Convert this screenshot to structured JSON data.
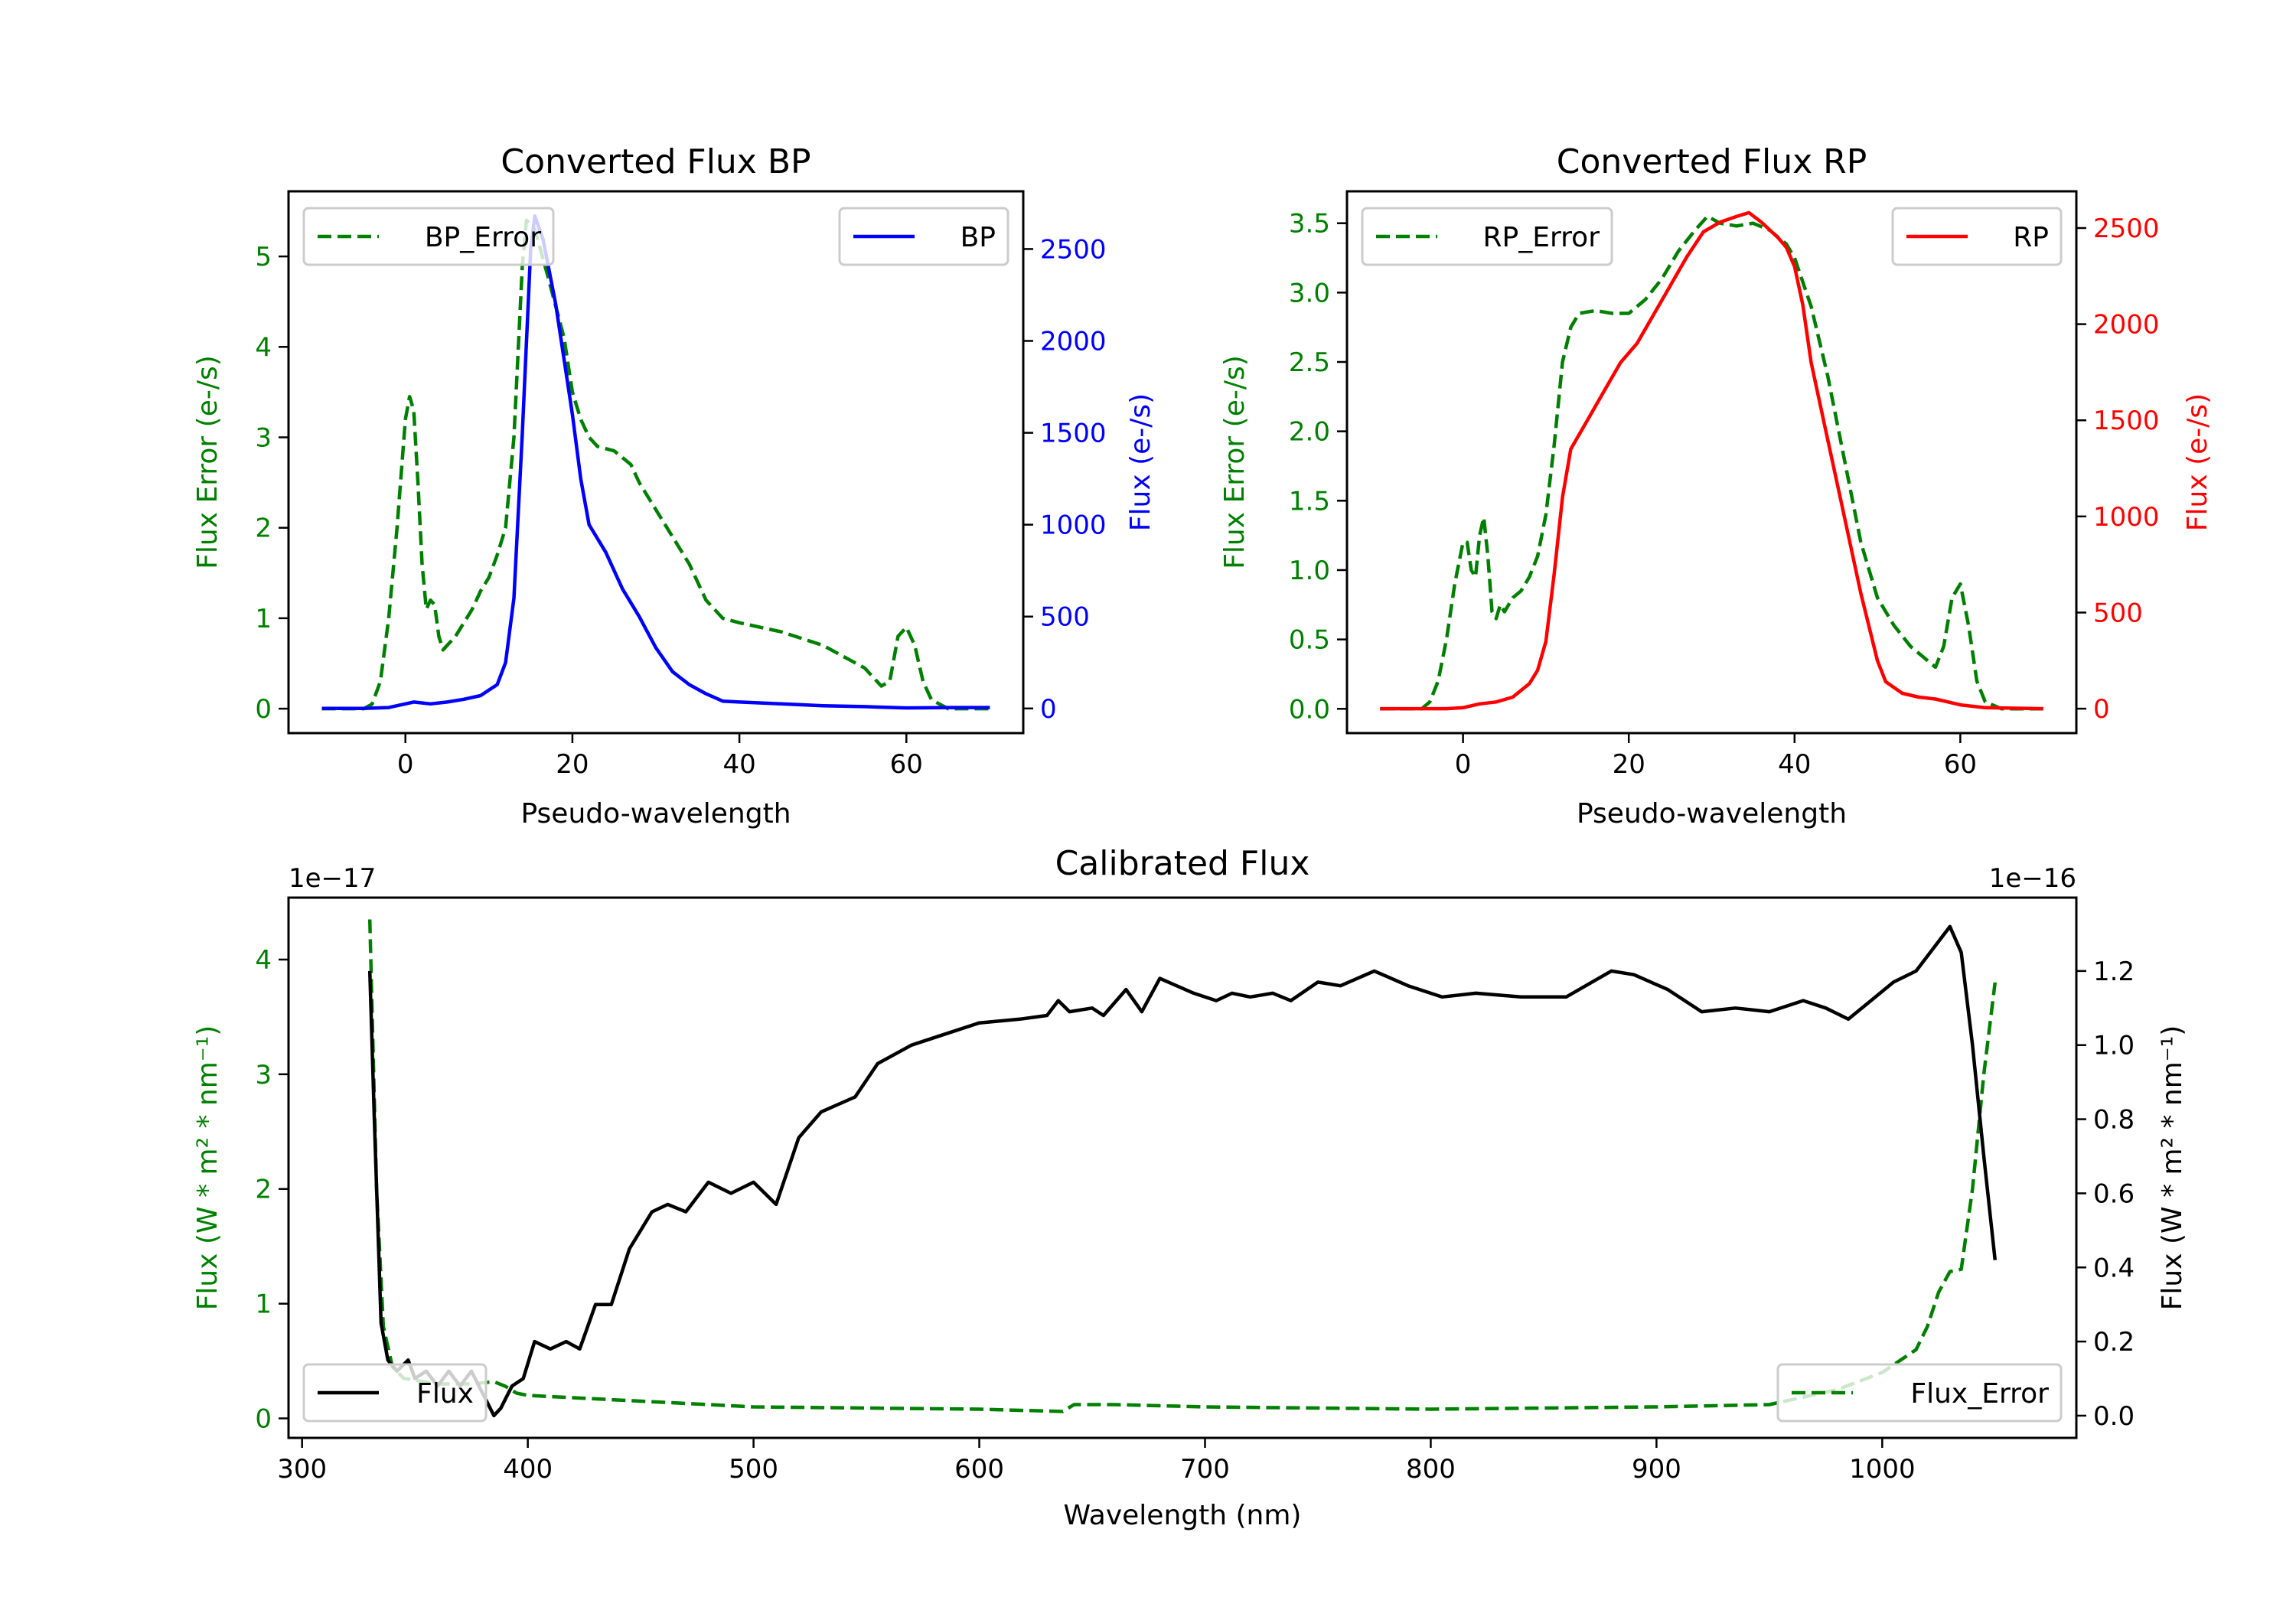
{
  "chart_data": [
    {
      "type": "line",
      "title": "Converted Flux BP",
      "xlabel": "Pseudo-wavelength",
      "ylabel_left": "Flux Error (e-/s)",
      "ylabel_right": "Flux (e-/s)",
      "xlim": [
        -14,
        74
      ],
      "ylim_left": [
        -0.27,
        5.72
      ],
      "ylim_right": [
        -134,
        2814
      ],
      "xticks": [
        0,
        20,
        40,
        60
      ],
      "yticks_left": [
        0,
        1,
        2,
        3,
        4,
        5
      ],
      "yticks_left_labels": [
        "0",
        "1",
        "2",
        "3",
        "4",
        "5"
      ],
      "yticks_right": [
        0,
        500,
        1000,
        1500,
        2000,
        2500
      ],
      "left_color": "#008000",
      "right_color": "#0000ff",
      "series": [
        {
          "name": "BP_Error",
          "axis": "left",
          "style": "dashed",
          "color": "#008000",
          "legend": "top-left",
          "x": [
            -10,
            -5,
            -4,
            -3,
            -2,
            -1,
            0,
            0.5,
            1,
            1.5,
            2,
            2.5,
            3,
            3.5,
            4,
            4.5,
            5,
            6,
            7,
            8,
            9,
            10,
            11,
            12,
            13,
            14,
            14.5,
            15.5,
            17,
            19,
            20,
            21,
            22,
            23,
            25,
            27,
            28,
            30,
            32,
            34,
            36,
            38,
            40,
            45,
            50,
            55,
            57,
            58,
            59,
            60,
            61,
            62,
            63,
            65,
            70
          ],
          "y": [
            0,
            0,
            0.05,
            0.3,
            1.0,
            2.0,
            3.2,
            3.45,
            3.3,
            2.5,
            1.6,
            1.1,
            1.2,
            1.15,
            0.8,
            0.65,
            0.7,
            0.8,
            0.95,
            1.1,
            1.3,
            1.45,
            1.7,
            2.0,
            3.0,
            4.9,
            5.4,
            5.3,
            4.8,
            4.1,
            3.5,
            3.2,
            3.0,
            2.9,
            2.85,
            2.7,
            2.5,
            2.2,
            1.9,
            1.6,
            1.2,
            1.0,
            0.95,
            0.85,
            0.7,
            0.45,
            0.25,
            0.3,
            0.8,
            0.9,
            0.7,
            0.3,
            0.1,
            0,
            0
          ]
        },
        {
          "name": "BP",
          "axis": "right",
          "style": "solid",
          "color": "#0000ff",
          "legend": "top-right",
          "x": [
            -10,
            -5,
            -2,
            0,
            1,
            3,
            5,
            7,
            9,
            10,
            11,
            12,
            13,
            14,
            15,
            15.5,
            16.5,
            18,
            20,
            21,
            22,
            24,
            26,
            28,
            30,
            32,
            34,
            36,
            38,
            40,
            45,
            50,
            55,
            60,
            65,
            70
          ],
          "y": [
            0,
            0,
            5,
            25,
            35,
            25,
            35,
            50,
            70,
            100,
            130,
            250,
            600,
            1500,
            2500,
            2680,
            2550,
            2200,
            1600,
            1250,
            1000,
            850,
            650,
            500,
            330,
            200,
            130,
            80,
            40,
            35,
            25,
            15,
            10,
            3,
            5,
            5
          ]
        }
      ]
    },
    {
      "type": "line",
      "title": "Converted Flux RP",
      "xlabel": "Pseudo-wavelength",
      "ylabel_left": "Flux Error (e-/s)",
      "ylabel_right": "Flux (e-/s)",
      "xlim": [
        -14,
        74
      ],
      "ylim_left": [
        -0.175,
        3.73
      ],
      "ylim_right": [
        -127,
        2691
      ],
      "xticks": [
        0,
        20,
        40,
        60
      ],
      "yticks_left": [
        0,
        0.5,
        1,
        1.5,
        2,
        2.5,
        3,
        3.5
      ],
      "yticks_left_labels": [
        "0.0",
        "0.5",
        "1.0",
        "1.5",
        "2.0",
        "2.5",
        "3.0",
        "3.5"
      ],
      "yticks_right": [
        0,
        500,
        1000,
        1500,
        2000,
        2500
      ],
      "left_color": "#008000",
      "right_color": "#ff0000",
      "series": [
        {
          "name": "RP_Error",
          "axis": "left",
          "style": "dashed",
          "color": "#008000",
          "legend": "top-left",
          "x": [
            -10,
            -5,
            -4,
            -3,
            -2,
            -1,
            0,
            0.5,
            1,
            1.5,
            2,
            2.5,
            3,
            3.5,
            4,
            4.5,
            5,
            6,
            7,
            8,
            9,
            10,
            11,
            12,
            13,
            14,
            16,
            18,
            20,
            22,
            24,
            26,
            28,
            29.5,
            31,
            33,
            35,
            37,
            39,
            40,
            42,
            44,
            46,
            48,
            50,
            52,
            54,
            56,
            57,
            58,
            59,
            60,
            61,
            62,
            63,
            65,
            70
          ],
          "y": [
            0,
            0,
            0.05,
            0.2,
            0.5,
            0.9,
            1.2,
            1.2,
            1.0,
            0.95,
            1.25,
            1.38,
            1.1,
            0.7,
            0.65,
            0.75,
            0.7,
            0.8,
            0.85,
            0.95,
            1.1,
            1.4,
            1.9,
            2.5,
            2.75,
            2.85,
            2.87,
            2.85,
            2.85,
            2.95,
            3.1,
            3.3,
            3.45,
            3.55,
            3.5,
            3.48,
            3.5,
            3.45,
            3.35,
            3.25,
            2.9,
            2.4,
            1.8,
            1.2,
            0.8,
            0.6,
            0.45,
            0.35,
            0.3,
            0.45,
            0.8,
            0.9,
            0.6,
            0.2,
            0.05,
            0,
            0
          ]
        },
        {
          "name": "RP",
          "axis": "right",
          "style": "solid",
          "color": "#ff0000",
          "legend": "top-right",
          "x": [
            -10,
            -2,
            0,
            2,
            4,
            6,
            8,
            9,
            10,
            11,
            12,
            13,
            15,
            17,
            19,
            21,
            23,
            25,
            27,
            29,
            31,
            33,
            34.5,
            36,
            38,
            39,
            40,
            41,
            42,
            44,
            46,
            48,
            50,
            51,
            53,
            55,
            57,
            60,
            63,
            70
          ],
          "y": [
            0,
            0,
            5,
            25,
            35,
            60,
            130,
            200,
            350,
            700,
            1100,
            1350,
            1500,
            1650,
            1800,
            1900,
            2050,
            2200,
            2350,
            2480,
            2530,
            2560,
            2580,
            2530,
            2450,
            2400,
            2300,
            2100,
            1800,
            1400,
            1000,
            600,
            250,
            140,
            80,
            60,
            50,
            20,
            5,
            0
          ]
        }
      ]
    },
    {
      "type": "line",
      "title": "Calibrated Flux",
      "xlabel": "Wavelength (nm)",
      "ylabel_left": "Flux (W * m$^2$ * nm$^{-1}$)",
      "ylabel_left_display": "Flux (W * m² * nm⁻¹)",
      "ylabel_right_display": "Flux (W * m² * nm⁻¹)",
      "offset_left": "1e−17",
      "offset_right": "1e−16",
      "xlim": [
        294,
        1086
      ],
      "ylim_left": [
        -0.17,
        4.54
      ],
      "ylim_right": [
        -0.06,
        1.398
      ],
      "xticks": [
        300,
        400,
        500,
        600,
        700,
        800,
        900,
        1000
      ],
      "yticks_left": [
        0,
        1,
        2,
        3,
        4
      ],
      "yticks_left_labels": [
        "0",
        "1",
        "2",
        "3",
        "4"
      ],
      "yticks_right": [
        0,
        0.2,
        0.4,
        0.6,
        0.8,
        1.0,
        1.2
      ],
      "yticks_right_labels": [
        "0.0",
        "0.2",
        "0.4",
        "0.6",
        "0.8",
        "1.0",
        "1.2"
      ],
      "left_color": "#008000",
      "right_color": "#000000",
      "series": [
        {
          "name": "Flux_Error",
          "axis": "left",
          "style": "dashed",
          "color": "#008000",
          "legend": "bottom-right",
          "x": [
            330,
            333,
            336,
            340,
            345,
            360,
            375,
            385,
            390,
            395,
            400,
            420,
            450,
            500,
            550,
            600,
            637,
            642,
            660,
            700,
            800,
            900,
            950,
            980,
            1000,
            1015,
            1020,
            1025,
            1030,
            1035,
            1040,
            1045,
            1050
          ],
          "y": [
            4.35,
            2.0,
            0.8,
            0.45,
            0.35,
            0.3,
            0.3,
            0.32,
            0.28,
            0.22,
            0.2,
            0.18,
            0.15,
            0.1,
            0.09,
            0.08,
            0.06,
            0.12,
            0.12,
            0.1,
            0.08,
            0.1,
            0.12,
            0.25,
            0.4,
            0.6,
            0.8,
            1.1,
            1.28,
            1.3,
            2.0,
            3.0,
            3.8
          ]
        },
        {
          "name": "Flux",
          "axis": "right",
          "style": "solid",
          "color": "#000000",
          "legend": "bottom-left",
          "x": [
            330,
            332,
            335,
            338,
            342,
            347,
            350,
            355,
            360,
            365,
            370,
            375,
            380,
            385,
            388,
            393,
            398,
            403,
            410,
            417,
            423,
            430,
            437,
            445,
            455,
            462,
            470,
            480,
            490,
            500,
            510,
            520,
            530,
            545,
            555,
            570,
            585,
            600,
            618,
            630,
            635,
            640,
            650,
            655,
            665,
            672,
            680,
            695,
            705,
            712,
            720,
            730,
            738,
            750,
            760,
            775,
            790,
            805,
            820,
            840,
            860,
            880,
            890,
            905,
            920,
            935,
            950,
            965,
            975,
            985,
            995,
            1005,
            1015,
            1025,
            1030,
            1035,
            1040,
            1045,
            1050
          ],
          "y": [
            1.2,
            0.8,
            0.25,
            0.15,
            0.12,
            0.15,
            0.1,
            0.12,
            0.08,
            0.12,
            0.08,
            0.12,
            0.06,
            0.0,
            0.02,
            0.08,
            0.1,
            0.2,
            0.18,
            0.2,
            0.18,
            0.3,
            0.3,
            0.45,
            0.55,
            0.57,
            0.55,
            0.63,
            0.6,
            0.63,
            0.57,
            0.75,
            0.82,
            0.86,
            0.95,
            1.0,
            1.03,
            1.06,
            1.07,
            1.08,
            1.12,
            1.09,
            1.1,
            1.08,
            1.15,
            1.09,
            1.18,
            1.14,
            1.12,
            1.14,
            1.13,
            1.14,
            1.12,
            1.17,
            1.16,
            1.2,
            1.16,
            1.13,
            1.14,
            1.13,
            1.13,
            1.2,
            1.19,
            1.15,
            1.09,
            1.1,
            1.09,
            1.12,
            1.1,
            1.07,
            1.12,
            1.17,
            1.2,
            1.28,
            1.32,
            1.25,
            1.0,
            0.7,
            0.42
          ]
        }
      ]
    }
  ]
}
